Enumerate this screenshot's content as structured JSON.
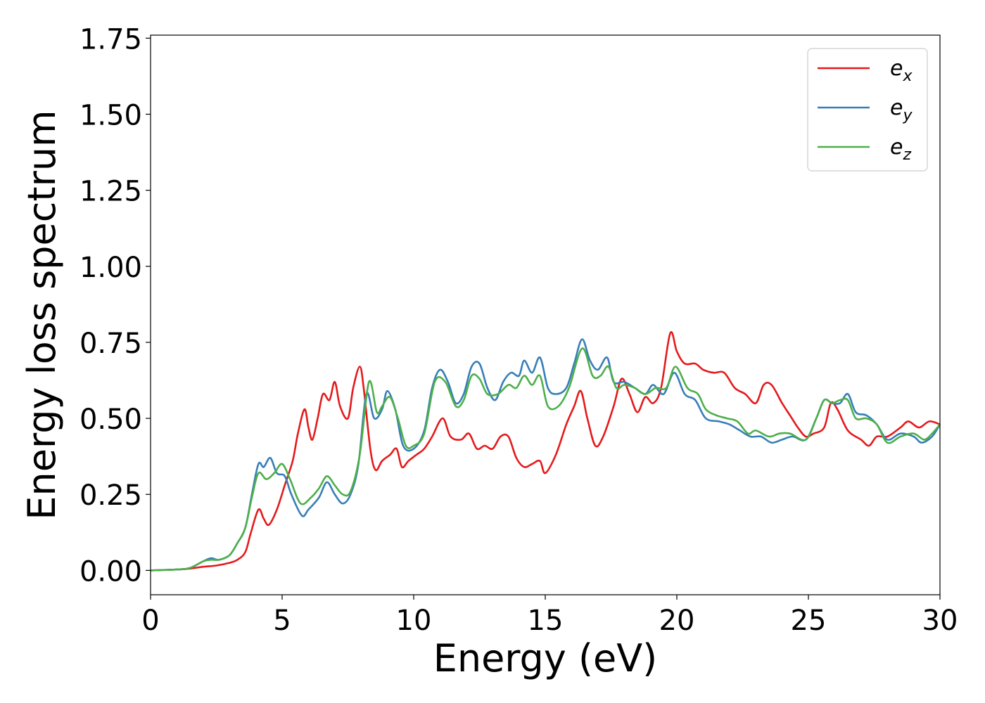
{
  "chart_data": {
    "type": "line",
    "title": "",
    "xlabel": "Energy (eV)",
    "ylabel": "Energy loss spectrum",
    "xlim": [
      0,
      30
    ],
    "ylim": [
      -0.08,
      1.76
    ],
    "xticks": [
      0,
      5,
      10,
      15,
      20,
      25,
      30
    ],
    "xtick_labels": [
      "0",
      "5",
      "10",
      "15",
      "20",
      "25",
      "30"
    ],
    "yticks": [
      0,
      0.25,
      0.5,
      0.75,
      1.0,
      1.25,
      1.5,
      1.75
    ],
    "ytick_labels": [
      "0.00",
      "0.25",
      "0.50",
      "0.75",
      "1.00",
      "1.25",
      "1.50",
      "1.75"
    ],
    "grid": false,
    "legend_position": "top-right",
    "series": [
      {
        "name": "e_x",
        "label_base": "e",
        "label_sub": "x",
        "color": "#e41a1c",
        "points": [
          [
            0,
            0
          ],
          [
            1,
            0.003
          ],
          [
            1.5,
            0.006
          ],
          [
            2,
            0.012
          ],
          [
            2.5,
            0.016
          ],
          [
            3,
            0.025
          ],
          [
            3.3,
            0.035
          ],
          [
            3.6,
            0.06
          ],
          [
            3.8,
            0.12
          ],
          [
            4.1,
            0.2
          ],
          [
            4.3,
            0.17
          ],
          [
            4.5,
            0.15
          ],
          [
            4.8,
            0.2
          ],
          [
            5.1,
            0.28
          ],
          [
            5.4,
            0.36
          ],
          [
            5.6,
            0.45
          ],
          [
            5.85,
            0.53
          ],
          [
            6.0,
            0.47
          ],
          [
            6.15,
            0.43
          ],
          [
            6.35,
            0.5
          ],
          [
            6.55,
            0.58
          ],
          [
            6.8,
            0.56
          ],
          [
            7.0,
            0.62
          ],
          [
            7.2,
            0.54
          ],
          [
            7.5,
            0.5
          ],
          [
            7.7,
            0.6
          ],
          [
            7.95,
            0.67
          ],
          [
            8.1,
            0.6
          ],
          [
            8.35,
            0.4
          ],
          [
            8.55,
            0.33
          ],
          [
            8.8,
            0.36
          ],
          [
            9.1,
            0.38
          ],
          [
            9.35,
            0.4
          ],
          [
            9.55,
            0.34
          ],
          [
            9.8,
            0.36
          ],
          [
            10.1,
            0.38
          ],
          [
            10.4,
            0.4
          ],
          [
            10.7,
            0.44
          ],
          [
            11.1,
            0.5
          ],
          [
            11.4,
            0.44
          ],
          [
            11.8,
            0.43
          ],
          [
            12.1,
            0.45
          ],
          [
            12.4,
            0.4
          ],
          [
            12.7,
            0.41
          ],
          [
            13.0,
            0.4
          ],
          [
            13.3,
            0.44
          ],
          [
            13.6,
            0.44
          ],
          [
            13.9,
            0.37
          ],
          [
            14.2,
            0.34
          ],
          [
            14.5,
            0.35
          ],
          [
            14.8,
            0.36
          ],
          [
            15.0,
            0.32
          ],
          [
            15.4,
            0.38
          ],
          [
            15.8,
            0.48
          ],
          [
            16.1,
            0.54
          ],
          [
            16.35,
            0.59
          ],
          [
            16.6,
            0.5
          ],
          [
            16.9,
            0.41
          ],
          [
            17.2,
            0.44
          ],
          [
            17.6,
            0.54
          ],
          [
            17.9,
            0.63
          ],
          [
            18.2,
            0.58
          ],
          [
            18.5,
            0.52
          ],
          [
            18.8,
            0.57
          ],
          [
            19.1,
            0.55
          ],
          [
            19.4,
            0.6
          ],
          [
            19.75,
            0.78
          ],
          [
            20.0,
            0.72
          ],
          [
            20.3,
            0.68
          ],
          [
            20.7,
            0.68
          ],
          [
            21.0,
            0.66
          ],
          [
            21.4,
            0.65
          ],
          [
            21.8,
            0.65
          ],
          [
            22.2,
            0.6
          ],
          [
            22.6,
            0.58
          ],
          [
            23.0,
            0.55
          ],
          [
            23.3,
            0.61
          ],
          [
            23.6,
            0.61
          ],
          [
            24.0,
            0.55
          ],
          [
            24.3,
            0.51
          ],
          [
            24.6,
            0.47
          ],
          [
            24.9,
            0.44
          ],
          [
            25.2,
            0.45
          ],
          [
            25.6,
            0.47
          ],
          [
            25.85,
            0.55
          ],
          [
            26.1,
            0.53
          ],
          [
            26.5,
            0.46
          ],
          [
            27.0,
            0.43
          ],
          [
            27.3,
            0.41
          ],
          [
            27.6,
            0.44
          ],
          [
            28.0,
            0.44
          ],
          [
            28.5,
            0.47
          ],
          [
            28.8,
            0.49
          ],
          [
            29.2,
            0.47
          ],
          [
            29.6,
            0.49
          ],
          [
            30,
            0.48
          ]
        ]
      },
      {
        "name": "e_y",
        "label_base": "e",
        "label_sub": "y",
        "color": "#377eb8",
        "points": [
          [
            0,
            0
          ],
          [
            1,
            0.003
          ],
          [
            1.5,
            0.008
          ],
          [
            2,
            0.03
          ],
          [
            2.3,
            0.04
          ],
          [
            2.6,
            0.035
          ],
          [
            3.0,
            0.05
          ],
          [
            3.3,
            0.09
          ],
          [
            3.6,
            0.14
          ],
          [
            3.85,
            0.25
          ],
          [
            4.1,
            0.35
          ],
          [
            4.3,
            0.34
          ],
          [
            4.55,
            0.37
          ],
          [
            4.8,
            0.32
          ],
          [
            5.1,
            0.31
          ],
          [
            5.35,
            0.25
          ],
          [
            5.75,
            0.18
          ],
          [
            6.0,
            0.2
          ],
          [
            6.4,
            0.24
          ],
          [
            6.7,
            0.29
          ],
          [
            7.0,
            0.25
          ],
          [
            7.3,
            0.22
          ],
          [
            7.6,
            0.25
          ],
          [
            7.9,
            0.35
          ],
          [
            8.2,
            0.58
          ],
          [
            8.5,
            0.5
          ],
          [
            8.8,
            0.53
          ],
          [
            9.0,
            0.59
          ],
          [
            9.3,
            0.53
          ],
          [
            9.6,
            0.41
          ],
          [
            10.0,
            0.4
          ],
          [
            10.4,
            0.46
          ],
          [
            10.7,
            0.6
          ],
          [
            11.0,
            0.66
          ],
          [
            11.3,
            0.62
          ],
          [
            11.6,
            0.55
          ],
          [
            11.9,
            0.58
          ],
          [
            12.2,
            0.67
          ],
          [
            12.5,
            0.68
          ],
          [
            12.8,
            0.6
          ],
          [
            13.1,
            0.56
          ],
          [
            13.4,
            0.62
          ],
          [
            13.7,
            0.65
          ],
          [
            14.0,
            0.64
          ],
          [
            14.2,
            0.69
          ],
          [
            14.5,
            0.65
          ],
          [
            14.8,
            0.7
          ],
          [
            15.1,
            0.6
          ],
          [
            15.4,
            0.58
          ],
          [
            15.8,
            0.6
          ],
          [
            16.1,
            0.68
          ],
          [
            16.4,
            0.76
          ],
          [
            16.7,
            0.69
          ],
          [
            17.0,
            0.66
          ],
          [
            17.35,
            0.7
          ],
          [
            17.6,
            0.62
          ],
          [
            18.0,
            0.62
          ],
          [
            18.4,
            0.6
          ],
          [
            18.8,
            0.58
          ],
          [
            19.1,
            0.61
          ],
          [
            19.5,
            0.58
          ],
          [
            19.9,
            0.65
          ],
          [
            20.3,
            0.58
          ],
          [
            20.7,
            0.56
          ],
          [
            21.1,
            0.5
          ],
          [
            21.6,
            0.49
          ],
          [
            22.0,
            0.48
          ],
          [
            22.4,
            0.46
          ],
          [
            22.8,
            0.44
          ],
          [
            23.2,
            0.44
          ],
          [
            23.6,
            0.42
          ],
          [
            24.0,
            0.43
          ],
          [
            24.4,
            0.44
          ],
          [
            24.9,
            0.43
          ],
          [
            25.3,
            0.5
          ],
          [
            25.6,
            0.56
          ],
          [
            25.9,
            0.55
          ],
          [
            26.2,
            0.55
          ],
          [
            26.5,
            0.58
          ],
          [
            26.8,
            0.52
          ],
          [
            27.2,
            0.51
          ],
          [
            27.6,
            0.48
          ],
          [
            28.0,
            0.43
          ],
          [
            28.5,
            0.45
          ],
          [
            29.0,
            0.44
          ],
          [
            29.3,
            0.42
          ],
          [
            29.7,
            0.44
          ],
          [
            30,
            0.48
          ]
        ]
      },
      {
        "name": "e_z",
        "label_base": "e",
        "label_sub": "z",
        "color": "#4daf4a",
        "points": [
          [
            0,
            0
          ],
          [
            1,
            0.003
          ],
          [
            1.5,
            0.008
          ],
          [
            2,
            0.03
          ],
          [
            2.3,
            0.035
          ],
          [
            2.6,
            0.035
          ],
          [
            3.0,
            0.05
          ],
          [
            3.3,
            0.09
          ],
          [
            3.6,
            0.14
          ],
          [
            3.85,
            0.24
          ],
          [
            4.1,
            0.32
          ],
          [
            4.4,
            0.3
          ],
          [
            4.7,
            0.32
          ],
          [
            5.0,
            0.35
          ],
          [
            5.3,
            0.3
          ],
          [
            5.7,
            0.22
          ],
          [
            6.1,
            0.24
          ],
          [
            6.4,
            0.27
          ],
          [
            6.7,
            0.31
          ],
          [
            7.0,
            0.28
          ],
          [
            7.3,
            0.25
          ],
          [
            7.6,
            0.26
          ],
          [
            7.95,
            0.38
          ],
          [
            8.3,
            0.62
          ],
          [
            8.6,
            0.52
          ],
          [
            8.8,
            0.54
          ],
          [
            9.1,
            0.57
          ],
          [
            9.4,
            0.5
          ],
          [
            9.7,
            0.41
          ],
          [
            10.0,
            0.41
          ],
          [
            10.4,
            0.45
          ],
          [
            10.8,
            0.62
          ],
          [
            11.2,
            0.62
          ],
          [
            11.6,
            0.54
          ],
          [
            11.9,
            0.56
          ],
          [
            12.2,
            0.64
          ],
          [
            12.5,
            0.63
          ],
          [
            12.8,
            0.58
          ],
          [
            13.2,
            0.58
          ],
          [
            13.6,
            0.61
          ],
          [
            13.9,
            0.6
          ],
          [
            14.2,
            0.64
          ],
          [
            14.5,
            0.61
          ],
          [
            14.8,
            0.64
          ],
          [
            15.1,
            0.54
          ],
          [
            15.5,
            0.54
          ],
          [
            15.9,
            0.6
          ],
          [
            16.4,
            0.73
          ],
          [
            16.8,
            0.64
          ],
          [
            17.1,
            0.64
          ],
          [
            17.4,
            0.67
          ],
          [
            17.7,
            0.6
          ],
          [
            18.0,
            0.61
          ],
          [
            18.4,
            0.6
          ],
          [
            18.8,
            0.58
          ],
          [
            19.2,
            0.6
          ],
          [
            19.6,
            0.6
          ],
          [
            19.95,
            0.67
          ],
          [
            20.4,
            0.6
          ],
          [
            20.8,
            0.58
          ],
          [
            21.1,
            0.53
          ],
          [
            21.5,
            0.51
          ],
          [
            21.9,
            0.5
          ],
          [
            22.3,
            0.49
          ],
          [
            22.7,
            0.45
          ],
          [
            23.0,
            0.46
          ],
          [
            23.5,
            0.44
          ],
          [
            23.9,
            0.45
          ],
          [
            24.3,
            0.45
          ],
          [
            24.9,
            0.43
          ],
          [
            25.3,
            0.5
          ],
          [
            25.6,
            0.56
          ],
          [
            25.9,
            0.55
          ],
          [
            26.2,
            0.56
          ],
          [
            26.5,
            0.56
          ],
          [
            26.8,
            0.5
          ],
          [
            27.2,
            0.5
          ],
          [
            27.6,
            0.48
          ],
          [
            28.0,
            0.42
          ],
          [
            28.5,
            0.44
          ],
          [
            29.0,
            0.45
          ],
          [
            29.4,
            0.43
          ],
          [
            29.7,
            0.45
          ],
          [
            30,
            0.48
          ]
        ]
      }
    ]
  }
}
